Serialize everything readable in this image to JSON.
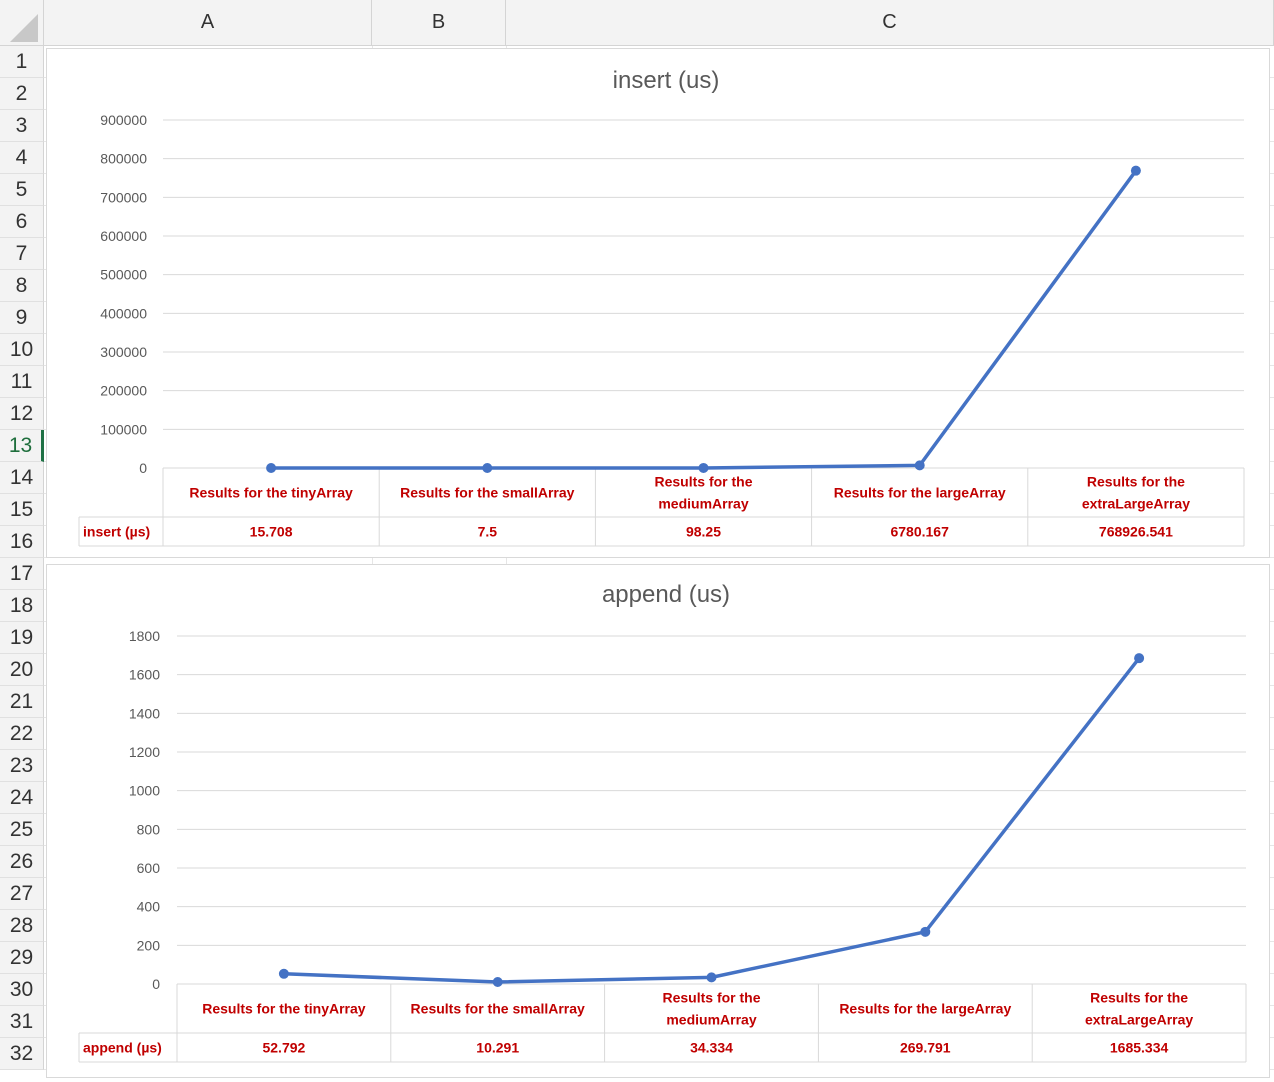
{
  "spreadsheet": {
    "columns": [
      "A",
      "B",
      "C"
    ],
    "rows": [
      "1",
      "2",
      "3",
      "4",
      "5",
      "6",
      "7",
      "8",
      "9",
      "10",
      "11",
      "12",
      "13",
      "14",
      "15",
      "16",
      "17",
      "18",
      "19",
      "20",
      "21",
      "22",
      "23",
      "24",
      "25",
      "26",
      "27",
      "28",
      "29",
      "30",
      "31",
      "32"
    ],
    "selected_row": "13"
  },
  "chart_data": [
    {
      "type": "line",
      "title": "insert (us)",
      "categories": [
        "Results for the tinyArray",
        "Results for the smallArray",
        "Results for the mediumArray",
        "Results for the largeArray",
        "Results for the extraLargeArray"
      ],
      "category_lines": [
        [
          "Results for the tinyArray"
        ],
        [
          "Results for the smallArray"
        ],
        [
          "Results for the",
          "mediumArray"
        ],
        [
          "Results for the largeArray"
        ],
        [
          "Results for the",
          "extraLargeArray"
        ]
      ],
      "series": [
        {
          "name": "insert (µs)",
          "values": [
            15.708,
            7.5,
            98.25,
            6780.167,
            768926.541
          ]
        }
      ],
      "value_labels": [
        "15.708",
        "7.5",
        "98.25",
        "6780.167",
        "768926.541"
      ],
      "yticks": [
        "0",
        "100000",
        "200000",
        "300000",
        "400000",
        "500000",
        "600000",
        "700000",
        "800000",
        "900000"
      ],
      "ylim": [
        0,
        900000
      ],
      "grid": true,
      "legend": "data table",
      "color": "#4472c4",
      "label_color": "#c00000"
    },
    {
      "type": "line",
      "title": "append (us)",
      "categories": [
        "Results for the tinyArray",
        "Results for the smallArray",
        "Results for the mediumArray",
        "Results for the largeArray",
        "Results for the extraLargeArray"
      ],
      "category_lines": [
        [
          "Results for the tinyArray"
        ],
        [
          "Results for the smallArray"
        ],
        [
          "Results for the",
          "mediumArray"
        ],
        [
          "Results for the largeArray"
        ],
        [
          "Results for the",
          "extraLargeArray"
        ]
      ],
      "series": [
        {
          "name": "append (µs)",
          "values": [
            52.792,
            10.291,
            34.334,
            269.791,
            1685.334
          ]
        }
      ],
      "value_labels": [
        "52.792",
        "10.291",
        "34.334",
        "269.791",
        "1685.334"
      ],
      "yticks": [
        "0",
        "200",
        "400",
        "600",
        "800",
        "1000",
        "1200",
        "1400",
        "1600",
        "1800"
      ],
      "ylim": [
        0,
        1800
      ],
      "grid": true,
      "legend": "data table",
      "color": "#4472c4",
      "label_color": "#c00000"
    }
  ]
}
